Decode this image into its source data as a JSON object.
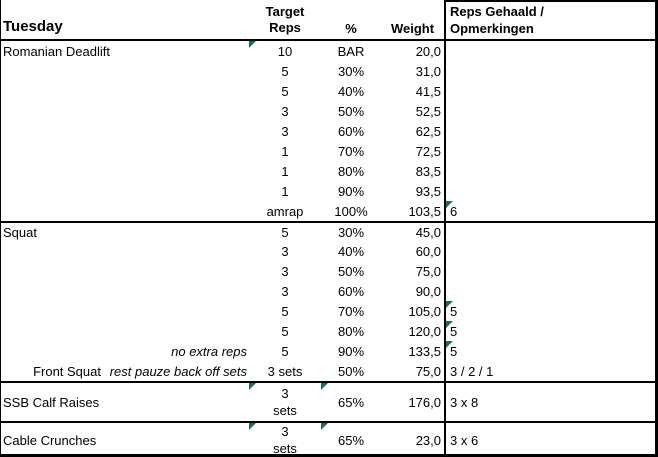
{
  "colors": {
    "flag_green": "#1E7145",
    "border": "#000000",
    "text": "#000000",
    "background": "#FFFFFF"
  },
  "header": {
    "day_label": "Tuesday",
    "columns": {
      "target_reps": "Target\nReps",
      "percent": "%",
      "weight": "Weight",
      "result": "Reps Gehaald /\nOpmerkingen"
    }
  },
  "rows": [
    {
      "name": "Romanian Deadlift",
      "note": "",
      "reps": "10",
      "pct": "BAR",
      "weight": "20,0",
      "result": "",
      "tri_reps": true
    },
    {
      "name": "",
      "note": "",
      "reps": "5",
      "pct": "30%",
      "weight": "31,0",
      "result": ""
    },
    {
      "name": "",
      "note": "",
      "reps": "5",
      "pct": "40%",
      "weight": "41,5",
      "result": ""
    },
    {
      "name": "",
      "note": "",
      "reps": "3",
      "pct": "50%",
      "weight": "52,5",
      "result": ""
    },
    {
      "name": "",
      "note": "",
      "reps": "3",
      "pct": "60%",
      "weight": "62,5",
      "result": ""
    },
    {
      "name": "",
      "note": "",
      "reps": "1",
      "pct": "70%",
      "weight": "72,5",
      "result": ""
    },
    {
      "name": "",
      "note": "",
      "reps": "1",
      "pct": "80%",
      "weight": "83,5",
      "result": ""
    },
    {
      "name": "",
      "note": "",
      "reps": "1",
      "pct": "90%",
      "weight": "93,5",
      "result": ""
    },
    {
      "name": "",
      "note": "",
      "reps": "amrap",
      "pct": "100%",
      "weight": "103,5",
      "result": "6",
      "tri_result": true
    },
    {
      "name": "Squat",
      "note": "",
      "reps": "5",
      "pct": "30%",
      "weight": "45,0",
      "result": "",
      "border_top": true
    },
    {
      "name": "",
      "note": "",
      "reps": "3",
      "pct": "40%",
      "weight": "60,0",
      "result": ""
    },
    {
      "name": "",
      "note": "",
      "reps": "3",
      "pct": "50%",
      "weight": "75,0",
      "result": ""
    },
    {
      "name": "",
      "note": "",
      "reps": "3",
      "pct": "60%",
      "weight": "90,0",
      "result": ""
    },
    {
      "name": "",
      "note": "",
      "reps": "5",
      "pct": "70%",
      "weight": "105,0",
      "result": "5",
      "tri_result": true
    },
    {
      "name": "",
      "note": "",
      "reps": "5",
      "pct": "80%",
      "weight": "120,0",
      "result": "5",
      "tri_result": true
    },
    {
      "name": "",
      "note": "no extra reps",
      "reps": "5",
      "pct": "90%",
      "weight": "133,5",
      "result": "5",
      "tri_result": true
    },
    {
      "name": "Front Squat",
      "name_align": "right",
      "note": "rest pauze back off sets",
      "reps": "3 sets",
      "pct": "50%",
      "weight": "75,0",
      "result": "3 / 2 / 1"
    },
    {
      "name": "SSB Calf Raises",
      "note": "",
      "reps": "3\nsets",
      "pct": "65%",
      "weight": "176,0",
      "result": "3 x 8",
      "border_top": true,
      "tall": true,
      "tri_reps": true,
      "tri_pct": true
    },
    {
      "name": "Cable Crunches",
      "note": "",
      "reps": "3\nsets",
      "pct": "65%",
      "weight": "23,0",
      "result": "3 x 6",
      "border_top": true,
      "tall2": true,
      "tri_reps": true,
      "tri_pct": true
    }
  ]
}
